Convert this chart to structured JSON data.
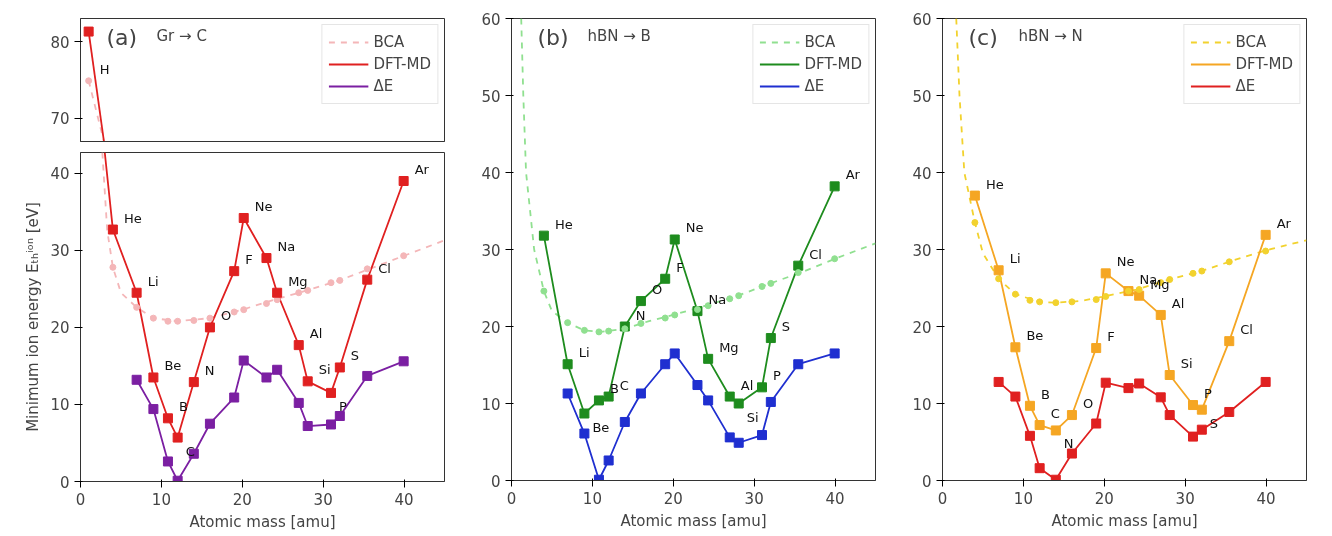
{
  "chart_data": [
    {
      "type": "line",
      "title": "(a)",
      "subtitle": "Gr → C",
      "xlim": [
        0,
        45
      ],
      "ylim": [
        67,
        83
      ],
      "yticks": [
        70,
        80
      ],
      "xticks": [
        0,
        10,
        20,
        30,
        40
      ],
      "tick_labels": "y",
      "grid": false,
      "legend": "top right",
      "series": [
        {
          "name": "BCA",
          "color": "#f4b6b8",
          "line_style": "dashed",
          "marker": "none",
          "x": [
            1.008,
            2.9
          ],
          "values": [
            74.9,
            67
          ]
        },
        {
          "type": "scatter",
          "color": "#f4b6b8",
          "marker": "circle",
          "x": [
            1.008
          ],
          "values": [
            74.9
          ]
        },
        {
          "name": "DFT-MD",
          "color": "#e02020",
          "line_style": "solid",
          "marker": "none",
          "x": [
            1.008,
            2.9
          ],
          "values": [
            81.3,
            67
          ]
        },
        {
          "type": "scatter",
          "color": "#e02020",
          "marker": "square",
          "x": [
            1.008
          ],
          "values": [
            81.3
          ]
        },
        {
          "name": "ΔE",
          "color": "#7b1fa2",
          "line_style": "solid",
          "marker": "none",
          "values": [
            null
          ]
        }
      ],
      "annotations": [
        {
          "text": "H",
          "x": 1.008,
          "y": 74.9
        }
      ]
    },
    {
      "type": "line",
      "title": "(b)",
      "subtitle": "hBN → B",
      "xlabel": "Atomic mass [amu]",
      "xlim": [
        0,
        45
      ],
      "ylim": [
        0,
        60
      ],
      "xticks": [
        0,
        10,
        20,
        30,
        40
      ],
      "yticks": [
        0,
        10,
        20,
        30,
        40,
        50,
        60
      ],
      "grid": false,
      "legend": "top right",
      "series": [
        {
          "name": "BCA",
          "color": "#90e090",
          "line_style": "dashed",
          "marker": "none",
          "x": [
            1.2,
            1.46,
            1.8,
            2.8,
            4.003,
            5,
            6.94,
            9,
            11,
            14,
            17,
            20,
            24,
            28,
            32,
            36,
            40,
            45
          ],
          "values": [
            60,
            50,
            40,
            30,
            24.6,
            22.0,
            20.5,
            19.5,
            19.3,
            19.7,
            20.7,
            21.5,
            22.7,
            24.0,
            25.6,
            27.1,
            28.8,
            30.8
          ]
        },
        {
          "type": "scatter",
          "color": "#90e090",
          "marker": "circle",
          "x": [
            4.003,
            6.94,
            9.012,
            10.81,
            12.01,
            14.01,
            16.0,
            19.0,
            20.18,
            22.99,
            24.31,
            26.98,
            28.09,
            30.97,
            32.06,
            35.45,
            39.95
          ],
          "values": [
            24.6,
            20.5,
            19.5,
            19.3,
            19.4,
            19.7,
            20.4,
            21.1,
            21.5,
            22.2,
            22.7,
            23.6,
            24.0,
            25.2,
            25.6,
            27.0,
            28.8
          ]
        },
        {
          "name": "DFT-MD",
          "color": "#1e8c1e",
          "line_style": "solid",
          "marker": "square",
          "x": [
            4.003,
            6.94,
            9.012,
            10.81,
            12.01,
            14.01,
            16.0,
            19.0,
            20.18,
            22.99,
            24.31,
            26.98,
            28.09,
            30.97,
            32.06,
            35.45,
            39.95
          ],
          "values": [
            31.8,
            15.1,
            8.7,
            10.4,
            10.9,
            20.0,
            23.3,
            26.2,
            31.3,
            22.0,
            15.8,
            10.9,
            10.0,
            12.1,
            18.5,
            27.9,
            38.2
          ]
        },
        {
          "name": "ΔE",
          "color": "#1f2fd0",
          "line_style": "solid",
          "marker": "square",
          "x": [
            6.94,
            9.012,
            10.81,
            12.01,
            14.01,
            16.0,
            19.0,
            20.18,
            22.99,
            24.31,
            26.98,
            28.09,
            30.97,
            32.06,
            35.45,
            39.95
          ],
          "values": [
            11.3,
            6.1,
            0.1,
            2.6,
            7.6,
            11.3,
            15.1,
            16.5,
            12.4,
            10.4,
            5.6,
            4.9,
            5.9,
            10.2,
            15.1,
            16.5
          ]
        }
      ],
      "annotations": [
        {
          "text": "He",
          "x": 4.003,
          "y": 31.8
        },
        {
          "text": "Li",
          "x": 6.94,
          "y": 15.1
        },
        {
          "text": "Be",
          "x": 9.012,
          "y": 8.7
        },
        {
          "text": "B",
          "x": 10.81,
          "y": 10.4
        },
        {
          "text": "C",
          "x": 12.01,
          "y": 10.9
        },
        {
          "text": "N",
          "x": 14.01,
          "y": 20.0
        },
        {
          "text": "O",
          "x": 16.0,
          "y": 23.3
        },
        {
          "text": "F",
          "x": 19.0,
          "y": 26.2
        },
        {
          "text": "Ne",
          "x": 20.18,
          "y": 31.3
        },
        {
          "text": "Na",
          "x": 22.99,
          "y": 22.0
        },
        {
          "text": "Mg",
          "x": 24.31,
          "y": 15.8
        },
        {
          "text": "Al",
          "x": 26.98,
          "y": 10.9
        },
        {
          "text": "Si",
          "x": 28.09,
          "y": 10.0
        },
        {
          "text": "P",
          "x": 30.97,
          "y": 12.1
        },
        {
          "text": "S",
          "x": 32.06,
          "y": 18.5
        },
        {
          "text": "Cl",
          "x": 35.45,
          "y": 27.9
        },
        {
          "text": "Ar",
          "x": 39.95,
          "y": 38.2
        }
      ]
    },
    {
      "type": "line",
      "title": "(c)",
      "subtitle": "hBN → N",
      "xlabel": "Atomic mass [amu]",
      "xlim": [
        0,
        45
      ],
      "ylim": [
        0,
        60
      ],
      "xticks": [
        0,
        10,
        20,
        30,
        40
      ],
      "yticks": [
        0,
        10,
        20,
        30,
        40,
        50,
        60
      ],
      "grid": false,
      "legend": "top right",
      "series": [
        {
          "name": "BCA",
          "color": "#f2d22e",
          "line_style": "dashed",
          "marker": "none",
          "x": [
            1.7,
            2.1,
            2.7,
            4.003,
            5,
            6.94,
            9,
            12,
            14,
            17,
            20,
            24,
            28,
            32,
            36,
            40,
            45
          ],
          "values": [
            60,
            50,
            40,
            33.5,
            29.5,
            26.2,
            24.2,
            23.2,
            23.1,
            23.3,
            23.9,
            24.8,
            26.1,
            27.2,
            28.6,
            29.9,
            31.2
          ]
        },
        {
          "type": "scatter",
          "color": "#f2d22e",
          "marker": "circle",
          "x": [
            4.003,
            6.94,
            9.012,
            10.81,
            12.01,
            14.01,
            16.0,
            19.0,
            20.18,
            22.99,
            24.31,
            26.98,
            28.09,
            30.97,
            32.06,
            35.45,
            39.95
          ],
          "values": [
            33.5,
            26.2,
            24.2,
            23.4,
            23.2,
            23.1,
            23.2,
            23.5,
            23.9,
            24.6,
            24.8,
            25.7,
            26.1,
            26.9,
            27.2,
            28.4,
            29.8
          ]
        },
        {
          "name": "DFT-MD",
          "color": "#f5a623",
          "line_style": "solid",
          "marker": "square",
          "x": [
            4.003,
            6.94,
            9.012,
            10.81,
            12.01,
            14.01,
            16.0,
            19.0,
            20.18,
            22.99,
            24.31,
            26.98,
            28.09,
            30.97,
            32.06,
            35.45,
            39.95
          ],
          "values": [
            37.0,
            27.3,
            17.3,
            9.7,
            7.2,
            6.5,
            8.5,
            17.2,
            26.9,
            24.6,
            24.0,
            21.5,
            13.7,
            9.8,
            9.2,
            18.1,
            31.9
          ]
        },
        {
          "name": "ΔE",
          "color": "#e02020",
          "line_style": "solid",
          "marker": "square",
          "x": [
            6.94,
            9.012,
            10.81,
            12.01,
            14.01,
            16.0,
            19.0,
            20.18,
            22.99,
            24.31,
            26.98,
            28.09,
            30.97,
            32.06,
            35.45,
            39.95
          ],
          "values": [
            12.8,
            10.9,
            5.8,
            1.6,
            0.1,
            3.5,
            7.4,
            12.7,
            12.0,
            12.6,
            10.8,
            8.5,
            5.7,
            6.6,
            8.9,
            12.8
          ]
        }
      ],
      "annotations": [
        {
          "text": "He",
          "x": 4.003,
          "y": 37.0
        },
        {
          "text": "Li",
          "x": 6.94,
          "y": 27.3
        },
        {
          "text": "Be",
          "x": 9.012,
          "y": 17.3
        },
        {
          "text": "B",
          "x": 10.81,
          "y": 9.7
        },
        {
          "text": "C",
          "x": 12.01,
          "y": 7.2
        },
        {
          "text": "N",
          "x": 14.01,
          "y": 6.5
        },
        {
          "text": "O",
          "x": 16.0,
          "y": 8.5
        },
        {
          "text": "F",
          "x": 19.0,
          "y": 17.2
        },
        {
          "text": "Ne",
          "x": 20.18,
          "y": 26.9
        },
        {
          "text": "Na",
          "x": 22.99,
          "y": 24.6
        },
        {
          "text": "Mg",
          "x": 24.31,
          "y": 24.0
        },
        {
          "text": "Al",
          "x": 26.98,
          "y": 21.5
        },
        {
          "text": "Si",
          "x": 28.09,
          "y": 13.7
        },
        {
          "text": "P",
          "x": 30.97,
          "y": 9.8
        },
        {
          "text": "S",
          "x": 32.06,
          "y": 9.2
        },
        {
          "text": "Cl",
          "x": 35.45,
          "y": 18.1
        },
        {
          "text": "Ar",
          "x": 39.95,
          "y": 31.9
        }
      ]
    },
    {
      "type": "line",
      "xlabel": "Atomic mass [amu]",
      "ylabel": "Minimum ion energy Eₜₕⁱᵒⁿ [eV]",
      "xlim": [
        0,
        45
      ],
      "ylim": [
        0,
        42.7
      ],
      "xticks": [
        0,
        10,
        20,
        30,
        40
      ],
      "yticks": [
        0,
        10,
        20,
        30,
        40
      ],
      "grid": false,
      "series": [
        {
          "color": "#f4b6b8",
          "line_style": "dashed",
          "marker": "none",
          "x": [
            2.7,
            3.3,
            4.003,
            5,
            6.94,
            9,
            12,
            16,
            20,
            24,
            28,
            32,
            36,
            40,
            45
          ],
          "values": [
            42.7,
            32.6,
            27.8,
            24.5,
            22.6,
            21.2,
            20.8,
            21.2,
            22.3,
            23.6,
            24.8,
            26.1,
            27.7,
            29.3,
            31.3
          ]
        },
        {
          "type": "scatter",
          "color": "#f4b6b8",
          "marker": "circle",
          "x": [
            4.003,
            6.94,
            9.012,
            10.81,
            12.01,
            14.01,
            16.0,
            19.0,
            20.18,
            22.99,
            24.31,
            26.98,
            28.09,
            30.97,
            32.06,
            35.45,
            39.95
          ],
          "values": [
            27.8,
            22.6,
            21.2,
            20.8,
            20.8,
            20.9,
            21.2,
            22.0,
            22.3,
            23.1,
            23.6,
            24.5,
            24.8,
            25.8,
            26.1,
            27.6,
            29.3
          ]
        },
        {
          "color": "#e02020",
          "line_style": "solid",
          "marker": "none",
          "x": [
            3.0,
            4.003,
            6.94,
            9.012,
            10.81,
            12.01,
            14.01,
            16.0,
            19.0,
            20.18,
            22.99,
            24.31,
            26.98,
            28.09,
            30.97,
            32.06,
            35.45,
            39.95
          ],
          "values": [
            42.7,
            32.7,
            24.5,
            13.5,
            8.2,
            5.7,
            12.9,
            20.0,
            27.3,
            34.2,
            29.0,
            24.5,
            17.7,
            13.0,
            11.5,
            14.8,
            26.2,
            39.0
          ]
        },
        {
          "type": "scatter",
          "color": "#e02020",
          "marker": "square",
          "x": [
            4.003,
            6.94,
            9.012,
            10.81,
            12.01,
            14.01,
            16.0,
            19.0,
            20.18,
            22.99,
            24.31,
            26.98,
            28.09,
            30.97,
            32.06,
            35.45,
            39.95
          ],
          "values": [
            32.7,
            24.5,
            13.5,
            8.2,
            5.7,
            12.9,
            20.0,
            27.3,
            34.2,
            29.0,
            24.5,
            17.7,
            13.0,
            11.5,
            14.8,
            26.2,
            39.0
          ]
        },
        {
          "color": "#7b1fa2",
          "line_style": "solid",
          "marker": "square",
          "x": [
            6.94,
            9.012,
            10.81,
            12.01,
            14.01,
            16.0,
            19.0,
            20.18,
            22.99,
            24.31,
            26.98,
            28.09,
            30.97,
            32.06,
            35.45,
            39.95
          ],
          "values": [
            13.2,
            9.4,
            2.6,
            0.1,
            3.6,
            7.5,
            10.9,
            15.7,
            13.5,
            14.5,
            10.2,
            7.2,
            7.4,
            8.5,
            13.7,
            15.6
          ]
        }
      ],
      "annotations": [
        {
          "text": "He",
          "x": 4.003,
          "y": 32.7
        },
        {
          "text": "Li",
          "x": 6.94,
          "y": 24.5
        },
        {
          "text": "Be",
          "x": 9.012,
          "y": 13.5
        },
        {
          "text": "B",
          "x": 10.81,
          "y": 8.2
        },
        {
          "text": "C",
          "x": 12.01,
          "y": 5.7
        },
        {
          "text": "N",
          "x": 14.01,
          "y": 12.9
        },
        {
          "text": "O",
          "x": 16.0,
          "y": 20.0
        },
        {
          "text": "F",
          "x": 19.0,
          "y": 27.3
        },
        {
          "text": "Ne",
          "x": 20.18,
          "y": 34.2
        },
        {
          "text": "Na",
          "x": 22.99,
          "y": 29.0
        },
        {
          "text": "Mg",
          "x": 24.31,
          "y": 24.5
        },
        {
          "text": "Al",
          "x": 26.98,
          "y": 17.7
        },
        {
          "text": "Si",
          "x": 28.09,
          "y": 13.0
        },
        {
          "text": "P",
          "x": 30.97,
          "y": 11.5
        },
        {
          "text": "S",
          "x": 32.06,
          "y": 14.8
        },
        {
          "text": "Cl",
          "x": 35.45,
          "y": 26.2
        },
        {
          "text": "Ar",
          "x": 39.95,
          "y": 39.0
        }
      ]
    }
  ]
}
